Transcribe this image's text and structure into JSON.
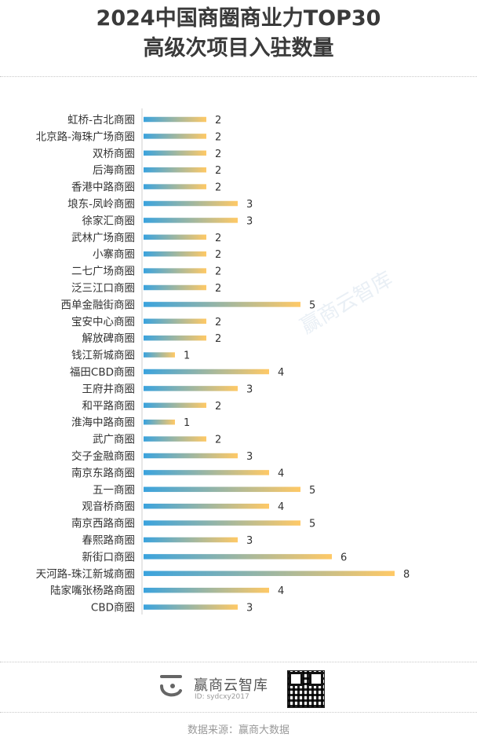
{
  "title_line1": "2024中国商圈商业力TOP30",
  "title_line2": "高级次项目入驻数量",
  "watermark": "赢商云智库",
  "footer": {
    "brand": "赢商云智库",
    "brand_id": "ID: sydcxy2017",
    "source": "数据来源：赢商大数据"
  },
  "colors": {
    "bar_start": "#3aa3de",
    "bar_end": "#ffc966"
  },
  "chart_data": {
    "type": "bar",
    "orientation": "horizontal",
    "title": "2024中国商圈商业力TOP30 高级次项目入驻数量",
    "xlabel": "",
    "ylabel": "",
    "xlim": [
      0,
      8
    ],
    "grid": false,
    "categories": [
      "虹桥-古北商圈",
      "北京路-海珠广场商圈",
      "双桥商圈",
      "后海商圈",
      "香港中路商圈",
      "埌东-凤岭商圈",
      "徐家汇商圈",
      "武林广场商圈",
      "小寨商圈",
      "二七广场商圈",
      "泛三江口商圈",
      "西单金融街商圈",
      "宝安中心商圈",
      "解放碑商圈",
      "钱江新城商圈",
      "福田CBD商圈",
      "王府井商圈",
      "和平路商圈",
      "淮海中路商圈",
      "武广商圈",
      "交子金融商圈",
      "南京东路商圈",
      "五一商圈",
      "观音桥商圈",
      "南京西路商圈",
      "春熙路商圈",
      "新街口商圈",
      "天河路-珠江新城商圈",
      "陆家嘴张杨路商圈",
      "CBD商圈"
    ],
    "values": [
      2,
      2,
      2,
      2,
      2,
      3,
      3,
      2,
      2,
      2,
      2,
      5,
      2,
      2,
      1,
      4,
      3,
      2,
      1,
      2,
      3,
      4,
      5,
      4,
      5,
      3,
      6,
      8,
      4,
      3
    ]
  }
}
